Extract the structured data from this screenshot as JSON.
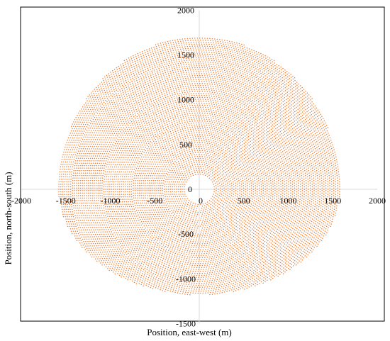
{
  "chart_data": {
    "type": "scatter",
    "title": "",
    "xlabel": "Position, east-west (m)",
    "ylabel": "Position, north-south (m)",
    "xlim": [
      -2000,
      2000
    ],
    "ylim": [
      -1500,
      2000
    ],
    "x_ticks": [
      -2000,
      -1500,
      -1000,
      -500,
      0,
      500,
      1000,
      1500,
      2000
    ],
    "y_ticks": [
      -1500,
      -1000,
      -500,
      0,
      500,
      1000,
      1500,
      2000
    ],
    "x_tick_labels": [
      "-2000",
      "-1500",
      "-1000",
      "-500",
      "0",
      "500",
      "1000",
      "1500",
      "2000"
    ],
    "y_tick_labels": [
      "-1500",
      "-1000",
      "-500",
      "0",
      "500",
      "1000",
      "1500",
      "2000"
    ],
    "grid": false,
    "legend": "none",
    "series": [
      {
        "marker_color": "#ED7D31",
        "field_center": [
          0,
          0
        ],
        "field_inner_radius": 150,
        "field_outer_radius_east_west": 1580,
        "field_north_extent": 1700,
        "field_south_extent": -1180,
        "ring_spacing": 22,
        "heliostat_spacing_along_ring": 28
      }
    ]
  }
}
